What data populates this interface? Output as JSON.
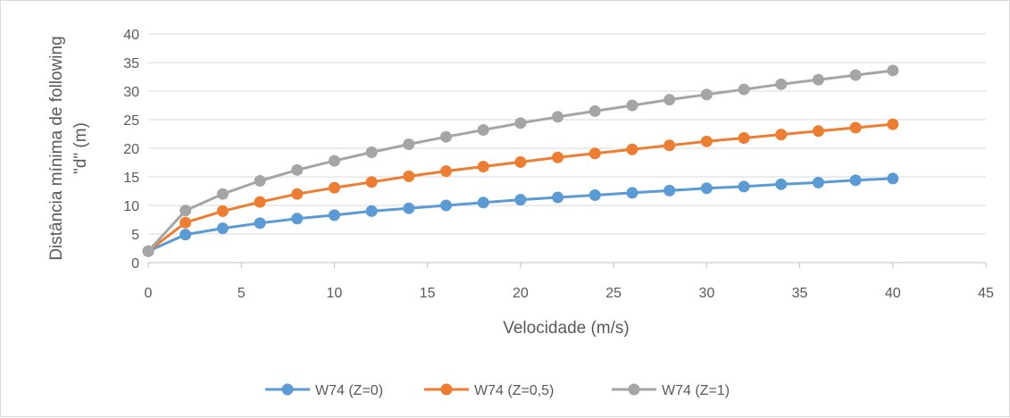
{
  "chart_data": {
    "type": "line",
    "xlabel": "Velocidade (m/s)",
    "ylabel_line1": "Distância mínima de following",
    "ylabel_line2": "\"d\"  (m)",
    "xlim": [
      0,
      45
    ],
    "ylim": [
      0,
      40
    ],
    "xticks": [
      0,
      5,
      10,
      15,
      20,
      25,
      30,
      35,
      40,
      45
    ],
    "yticks": [
      0,
      5,
      10,
      15,
      20,
      25,
      30,
      35,
      40
    ],
    "grid": "horizontal",
    "legend_position": "bottom",
    "x": [
      0,
      2,
      4,
      6,
      8,
      10,
      12,
      14,
      16,
      18,
      20,
      22,
      24,
      26,
      28,
      30,
      32,
      34,
      36,
      38,
      40
    ],
    "series": [
      {
        "name": "W74 (Z=0)",
        "color": "#5b9bd5",
        "values": [
          2.0,
          4.9,
          6.0,
          6.9,
          7.7,
          8.3,
          9.0,
          9.5,
          10.0,
          10.5,
          11.0,
          11.4,
          11.8,
          12.2,
          12.6,
          13.0,
          13.3,
          13.7,
          14.0,
          14.4,
          14.7
        ]
      },
      {
        "name": "W74 (Z=0,5)",
        "color": "#ed7d31",
        "values": [
          2.0,
          7.0,
          9.0,
          10.6,
          12.0,
          13.1,
          14.1,
          15.1,
          16.0,
          16.8,
          17.6,
          18.4,
          19.1,
          19.8,
          20.5,
          21.2,
          21.8,
          22.4,
          23.0,
          23.6,
          24.2
        ]
      },
      {
        "name": "W74 (Z=1)",
        "color": "#a5a5a5",
        "values": [
          2.0,
          9.1,
          12.0,
          14.3,
          16.2,
          17.8,
          19.3,
          20.7,
          22.0,
          23.2,
          24.4,
          25.5,
          26.5,
          27.5,
          28.5,
          29.4,
          30.3,
          31.2,
          32.0,
          32.8,
          33.6
        ]
      }
    ]
  }
}
